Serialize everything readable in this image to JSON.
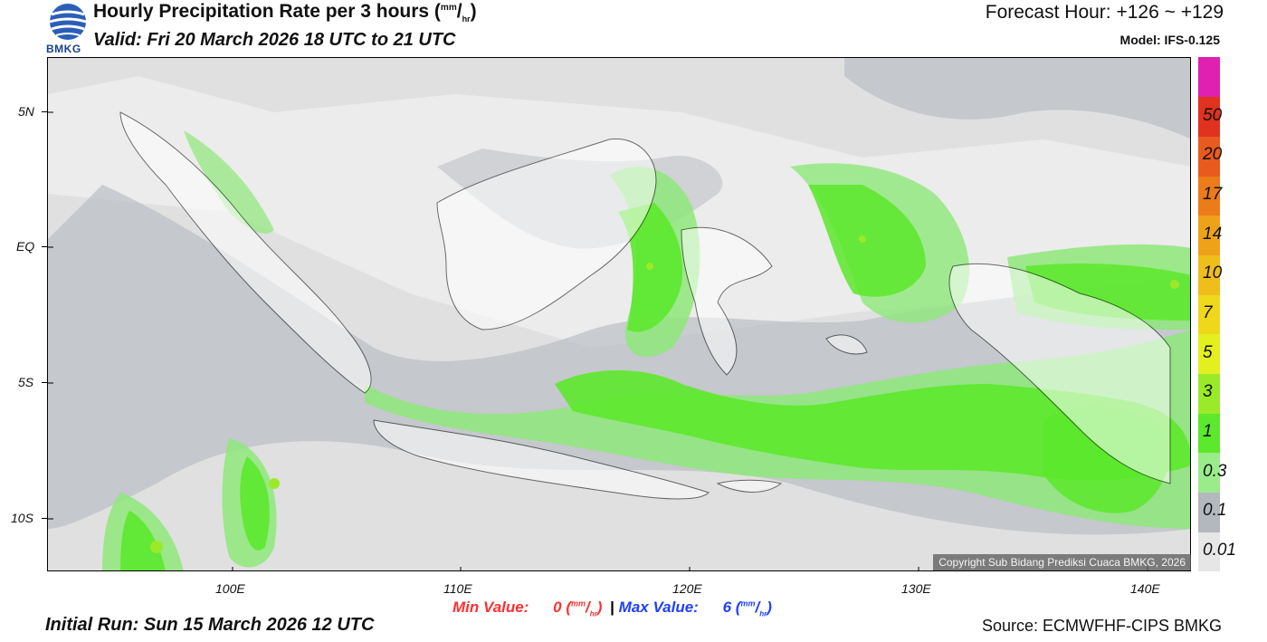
{
  "header": {
    "logo_text": "BMKG",
    "title": "Hourly Precipitation Rate per 3 hours",
    "title_unit_num": "mm",
    "title_unit_den": "hr",
    "valid": "Valid: Fri 20 March 2026 18 UTC to 21 UTC",
    "forecast_hour": "Forecast Hour: +126 ~ +129",
    "model": "Model: IFS-0.125"
  },
  "map": {
    "lat_labels": [
      "5N",
      "EQ",
      "5S",
      "10S"
    ],
    "lon_labels": [
      "100E",
      "110E",
      "120E",
      "130E",
      "140E"
    ],
    "copyright": "Copyright Sub Bidang Prediksi Cuaca BMKG, 2026",
    "colors": {
      "ocean": "#eeeeee",
      "cls_001_01": "#e3e3e3",
      "cls_01_03": "#b2b6bd",
      "cls_03_1": "#8ee87a",
      "cls_1_3": "#5ce82c",
      "cls_3_5": "#9bea2a",
      "land": "#ffffff"
    }
  },
  "legend": {
    "title": "mm/hr",
    "bins": [
      {
        "label": "0.01",
        "color": "#e6e6e6"
      },
      {
        "label": "0.1",
        "color": "#b3b7be"
      },
      {
        "label": "0.3",
        "color": "#9aeb8a"
      },
      {
        "label": "1",
        "color": "#5ce82c"
      },
      {
        "label": "3",
        "color": "#9bea2a"
      },
      {
        "label": "5",
        "color": "#e4ef20"
      },
      {
        "label": "7",
        "color": "#efd81c"
      },
      {
        "label": "10",
        "color": "#efbe1a"
      },
      {
        "label": "14",
        "color": "#eea21a"
      },
      {
        "label": "17",
        "color": "#ec7b1a"
      },
      {
        "label": "20",
        "color": "#e95a1e"
      },
      {
        "label": "50",
        "color": "#e0321e"
      },
      {
        "label": "",
        "color": "#e020b0"
      }
    ]
  },
  "footer": {
    "min_label": "Min Value:",
    "min_value": "0",
    "separator": "|",
    "max_label": "Max Value:",
    "max_value": "6",
    "unit_num": "mm",
    "unit_den": "hr",
    "initial_run": "Initial Run: Sun 15 March 2026 12 UTC",
    "source": "Source: ECMWFHF-CIPS BMKG"
  }
}
